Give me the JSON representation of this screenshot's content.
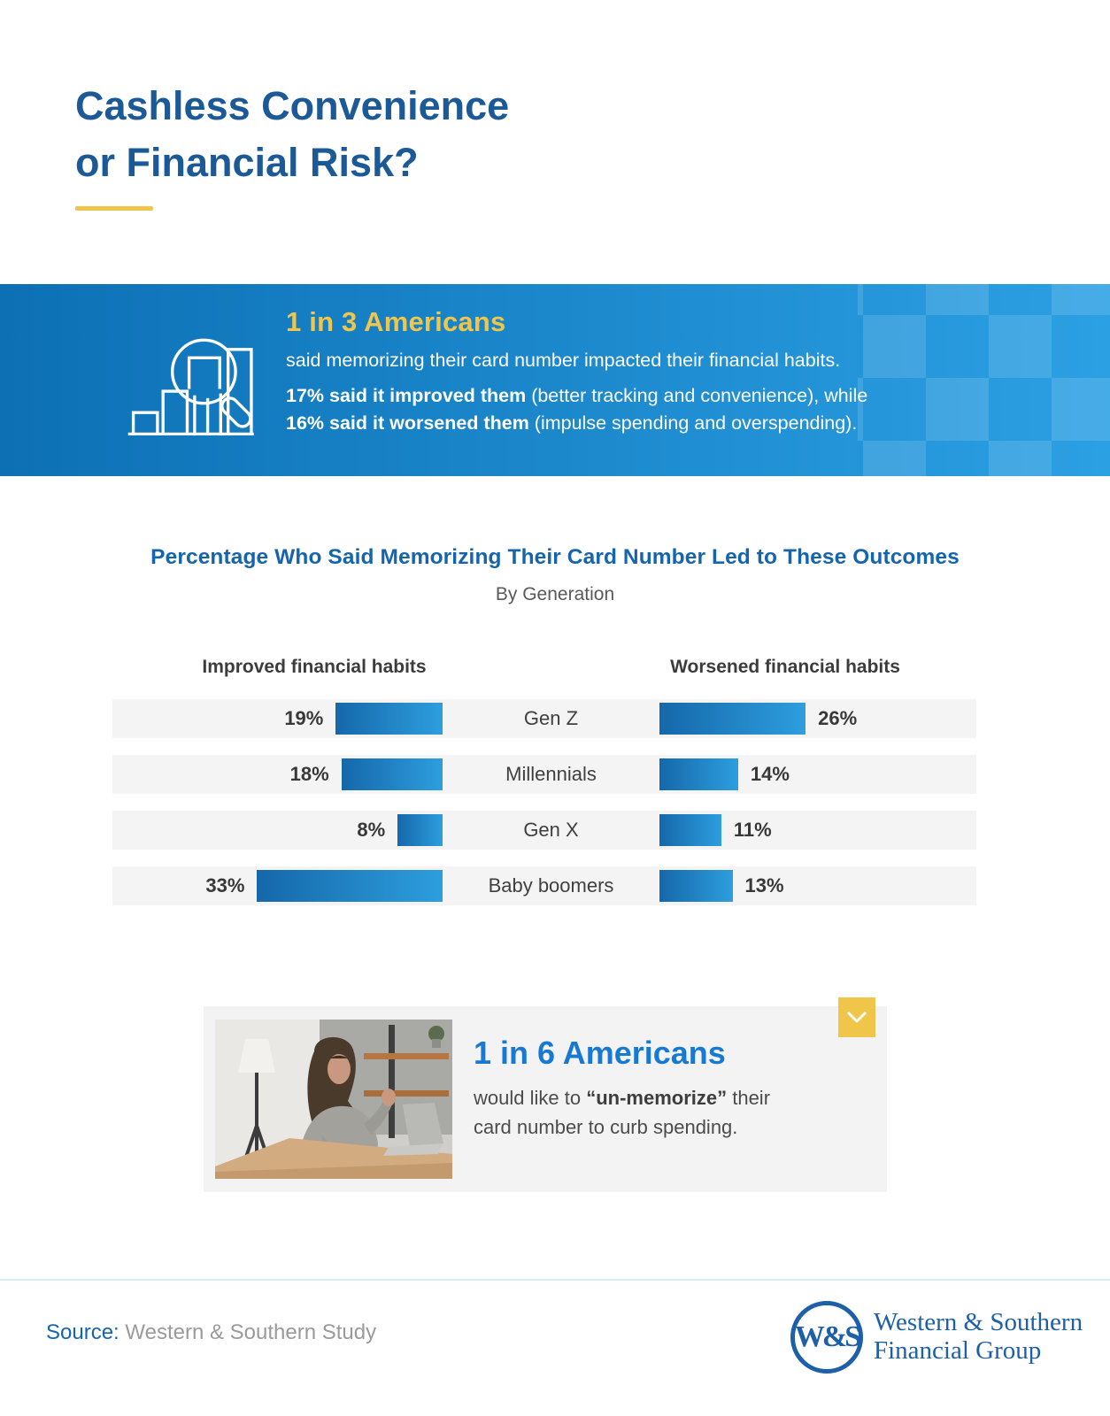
{
  "page_title": {
    "line1": "Cashless Convenience",
    "line2": "or Financial Risk?"
  },
  "banner": {
    "headline": "1 in 3 Americans",
    "subline": "said memorizing their card number impacted their financial habits.",
    "stat1_bold": "17% said it improved them",
    "stat1_rest": " (better tracking and convenience), while",
    "stat2_bold": "16% said it worsened them",
    "stat2_rest": " (impulse spending and overspending).",
    "icon": "bar-chart-magnifier-icon"
  },
  "chart_data": {
    "type": "bar",
    "layout": "paired-horizontal-bars-by-category",
    "title": "Percentage Who Said Memorizing Their Card Number Led to These Outcomes",
    "subtitle": "By Generation",
    "categories": [
      "Gen Z",
      "Millennials",
      "Gen X",
      "Baby boomers"
    ],
    "series": [
      {
        "name": "Improved financial habits",
        "side": "left",
        "values": [
          19,
          18,
          8,
          33
        ]
      },
      {
        "name": "Worsened financial habits",
        "side": "right",
        "values": [
          26,
          14,
          11,
          13
        ]
      }
    ],
    "value_suffix": "%",
    "xlim": [
      0,
      35
    ],
    "grid": false,
    "bar_gradient": [
      "#1568aa",
      "#2d9ede"
    ]
  },
  "callout": {
    "headline": "1 in 6 Americans",
    "line1_pre": "would like to ",
    "line1_bold": "“un-memorize”",
    "line1_post": " their",
    "line2": "card number to curb spending.",
    "chevron_icon": "chevron-down-icon",
    "photo": "woman-holding-credit-card-at-desk"
  },
  "footer": {
    "source_label": "Source:",
    "source_value": " Western & Southern Study",
    "logo_monogram": "W&S",
    "logo_line1": "Western & Southern",
    "logo_line2": "Financial Group"
  },
  "colors": {
    "title_blue": "#1b5a96",
    "chart_title_blue": "#1565ae",
    "callout_blue": "#1879d2",
    "accent_yellow": "#f0c64a",
    "banner_left": "#0d70b5",
    "banner_right": "#2ba0e3",
    "bar_dark": "#1568aa",
    "bar_light": "#2d9ede",
    "logo_blue": "#1d5fa8"
  }
}
